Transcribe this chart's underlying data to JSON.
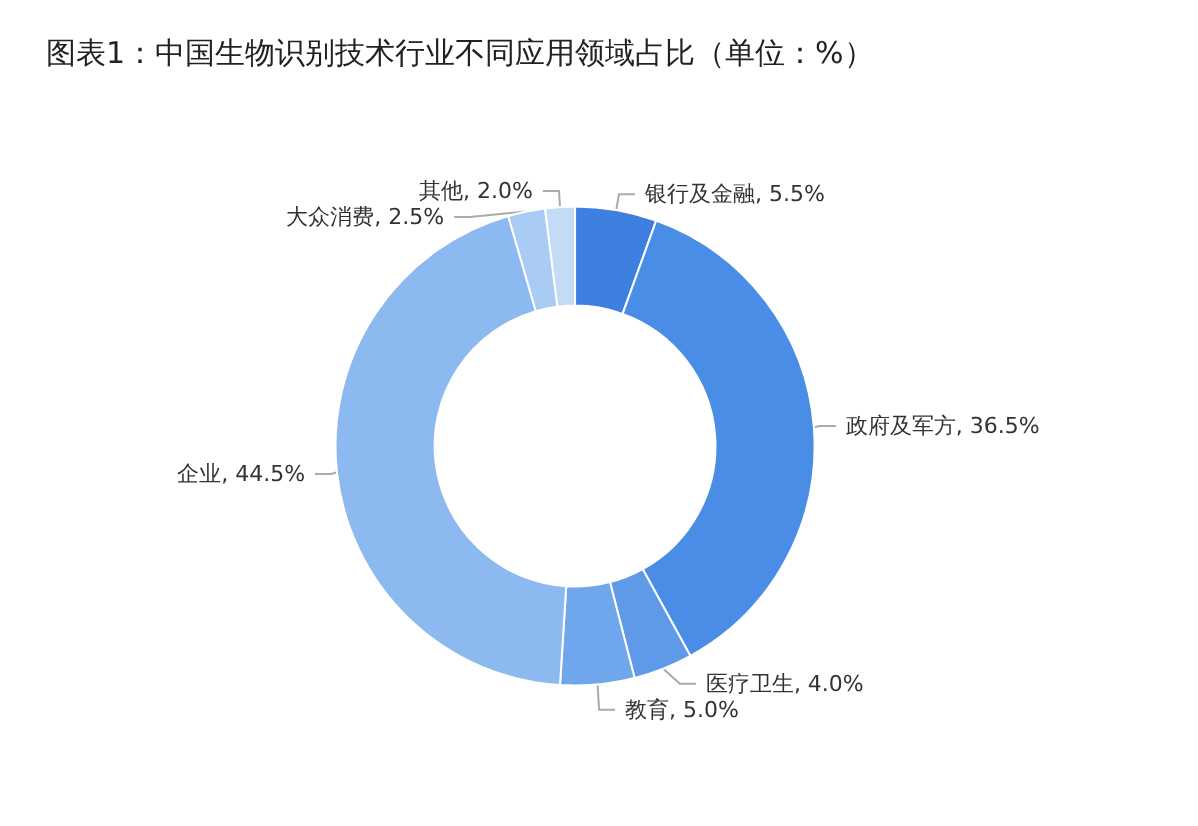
{
  "chart_data": {
    "type": "donut",
    "title": "图表1：中国生物识别技术行业不同应用领域占比（单位：%）",
    "categories": [
      "银行及金融",
      "政府及军方",
      "医疗卫生",
      "教育",
      "企业",
      "大众消费",
      "其他"
    ],
    "values": [
      5.5,
      36.5,
      4.0,
      5.0,
      44.5,
      2.5,
      2.0
    ],
    "value_labels": [
      "5.5%",
      "36.5%",
      "4.0%",
      "5.0%",
      "44.5%",
      "2.5%",
      "2.0%"
    ],
    "colors": [
      "#3d80e0",
      "#4a8de6",
      "#5e9ae8",
      "#70a6ec",
      "#8db9f1",
      "#a9cbf4",
      "#c3dbf7"
    ],
    "legend": false
  }
}
